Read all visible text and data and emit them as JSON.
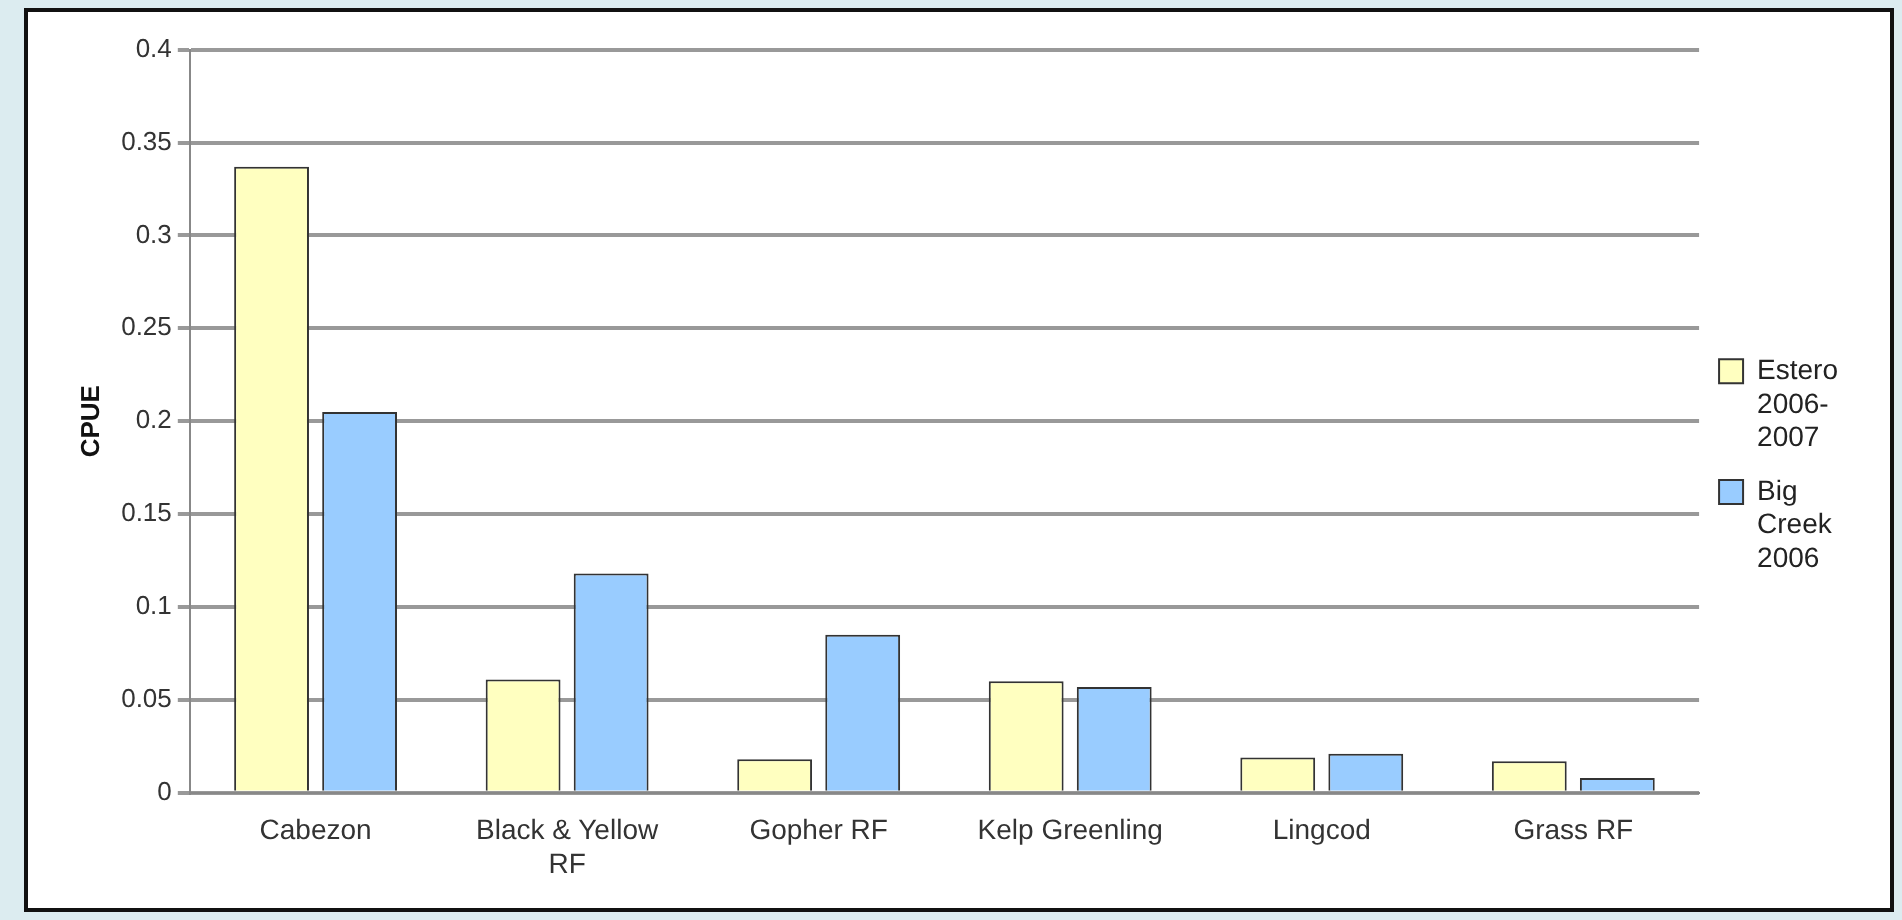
{
  "chart_data": {
    "type": "bar",
    "ylabel": "CPUE",
    "categories": [
      "Cabezon",
      "Black & Yellow RF",
      "Gopher RF",
      "Kelp Greenling",
      "Lingcod",
      "Grass RF"
    ],
    "series": [
      {
        "name": "Estero 2006-2007",
        "color": "#ffffc0",
        "values": [
          0.337,
          0.061,
          0.018,
          0.06,
          0.019,
          0.017
        ]
      },
      {
        "name": "Big Creek 2006",
        "color": "#99ccff",
        "values": [
          0.205,
          0.118,
          0.085,
          0.057,
          0.021,
          0.008
        ]
      }
    ],
    "ylim": [
      0,
      0.4
    ],
    "yticks": [
      0,
      0.05,
      0.1,
      0.15,
      0.2,
      0.25,
      0.3,
      0.35,
      0.4
    ],
    "grid": "y",
    "legend": "right"
  }
}
